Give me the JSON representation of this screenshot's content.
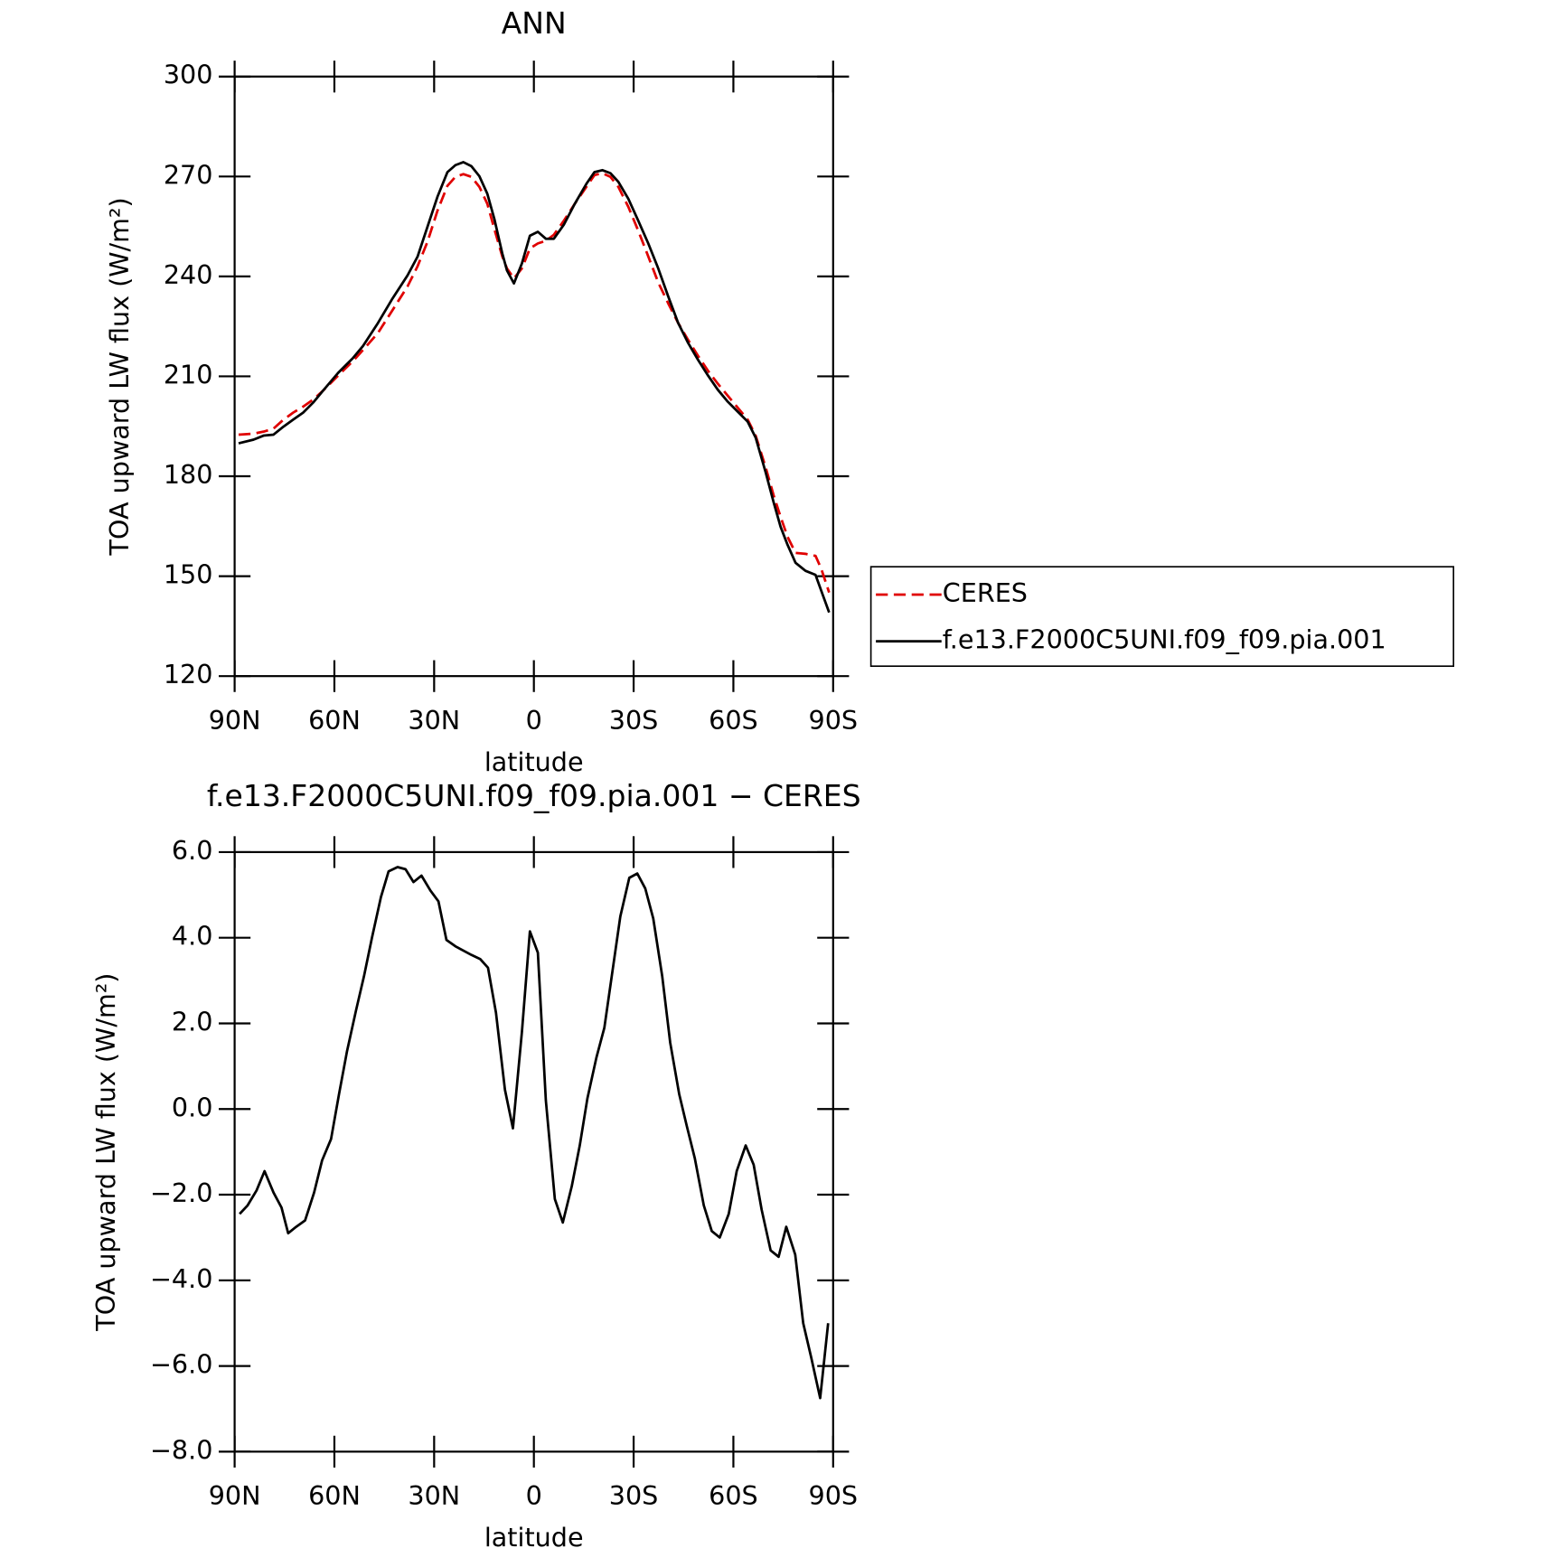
{
  "chart_data": [
    {
      "type": "line",
      "title": "ANN",
      "xlabel": "latitude",
      "ylabel": "TOA upward LW flux (W/m²)",
      "x": [
        88.8,
        84.3,
        81.3,
        78.3,
        75.3,
        72.4,
        69.4,
        66.4,
        63.4,
        58.9,
        54.4,
        51.4,
        46.9,
        42.5,
        38.0,
        35.0,
        32.0,
        29.0,
        26.0,
        23.6,
        21.2,
        18.8,
        16.4,
        14.0,
        11.9,
        9.5,
        8.1,
        6.0,
        3.6,
        1.2,
        -1.2,
        -3.6,
        -6.0,
        -9.0,
        -12.3,
        -15.8,
        -18.2,
        -20.6,
        -23.0,
        -25.4,
        -28.4,
        -31.4,
        -34.4,
        -37.4,
        -40.4,
        -43.4,
        -46.4,
        -49.4,
        -52.4,
        -55.3,
        -58.3,
        -61.3,
        -64.3,
        -66.7,
        -69.7,
        -72.1,
        -74.2,
        -76.3,
        -78.7,
        -81.7,
        -84.7,
        -86.4,
        -88.8
      ],
      "series": [
        {
          "name": "CERES",
          "color": "#e00000",
          "dashed": true,
          "values": [
            192.5,
            192.8,
            193.4,
            194.3,
            197.0,
            199.1,
            200.9,
            203.0,
            205.7,
            210.2,
            214.6,
            217.9,
            223.0,
            229.9,
            237.0,
            243.0,
            250.4,
            259.7,
            267.2,
            269.9,
            270.7,
            269.9,
            266.9,
            261.8,
            254.3,
            246.0,
            242.4,
            239.4,
            242.4,
            248.4,
            249.9,
            250.7,
            252.5,
            256.7,
            261.8,
            266.9,
            270.4,
            271.0,
            269.9,
            266.9,
            260.9,
            253.7,
            246.0,
            238.2,
            231.9,
            226.0,
            220.9,
            216.1,
            211.6,
            207.8,
            204.2,
            200.6,
            197.0,
            192.2,
            182.7,
            174.3,
            167.8,
            161.8,
            157.0,
            156.7,
            156.1,
            152.3,
            145.1
          ]
        },
        {
          "name": "f.e13.F2000C5UNI.f09_f09.pia.001",
          "color": "#000000",
          "dashed": false,
          "values": [
            189.9,
            191.0,
            192.2,
            192.5,
            194.9,
            197.0,
            199.1,
            202.1,
            205.7,
            211.0,
            215.5,
            219.1,
            226.0,
            233.4,
            240.3,
            245.9,
            254.9,
            263.9,
            271.3,
            273.4,
            274.3,
            273.1,
            270.1,
            264.8,
            257.3,
            246.9,
            241.8,
            237.9,
            243.9,
            252.2,
            253.4,
            251.3,
            251.3,
            255.5,
            261.8,
            267.8,
            271.3,
            271.9,
            271.0,
            268.4,
            263.3,
            256.7,
            249.9,
            242.4,
            234.0,
            226.0,
            220.0,
            214.9,
            210.2,
            206.0,
            202.4,
            199.4,
            196.4,
            191.6,
            181.2,
            172.2,
            164.8,
            159.4,
            154.0,
            151.6,
            150.4,
            145.7,
            139.1
          ]
        }
      ],
      "xlim": [
        90,
        -90
      ],
      "xticks": [
        {
          "value": 90,
          "label": "90N"
        },
        {
          "value": 60,
          "label": "60N"
        },
        {
          "value": 30,
          "label": "30N"
        },
        0,
        {
          "value": -30,
          "label": "30S"
        },
        {
          "value": -60,
          "label": "60S"
        },
        {
          "value": -90,
          "label": "90S"
        }
      ],
      "ylim": [
        120,
        300
      ],
      "yticks": [
        120,
        150,
        180,
        210,
        240,
        270,
        300
      ],
      "legend": "right"
    },
    {
      "type": "line",
      "title": "f.e13.F2000C5UNI.f09_f09.pia.001 − CERES",
      "xlabel": "latitude",
      "ylabel": "TOA upward LW flux (W/m²)",
      "x": [
        88.5,
        86.1,
        83.4,
        81.0,
        78.3,
        75.9,
        73.9,
        71.5,
        68.8,
        66.1,
        63.7,
        61.0,
        58.6,
        56.2,
        53.5,
        51.1,
        48.7,
        46.0,
        43.7,
        41.0,
        38.6,
        36.2,
        33.8,
        31.1,
        28.7,
        26.3,
        23.6,
        21.2,
        18.8,
        16.1,
        13.8,
        11.4,
        8.7,
        6.3,
        3.6,
        1.2,
        -1.2,
        -3.6,
        -6.3,
        -8.7,
        -11.4,
        -13.8,
        -16.1,
        -18.8,
        -21.2,
        -23.6,
        -26.0,
        -28.7,
        -31.1,
        -33.5,
        -35.9,
        -38.6,
        -41.0,
        -43.7,
        -46.0,
        -48.4,
        -51.1,
        -53.5,
        -55.9,
        -58.6,
        -61.0,
        -63.7,
        -66.1,
        -68.5,
        -71.2,
        -73.6,
        -75.9,
        -78.6,
        -81.0,
        -83.4,
        -86.1,
        -88.5
      ],
      "series": [
        {
          "color": "#000000",
          "values": [
            -2.45,
            -2.25,
            -1.9,
            -1.45,
            -1.95,
            -2.3,
            -2.9,
            -2.75,
            -2.6,
            -1.95,
            -1.2,
            -0.7,
            0.35,
            1.35,
            2.3,
            3.1,
            4.0,
            4.95,
            5.55,
            5.65,
            5.6,
            5.3,
            5.45,
            5.1,
            4.85,
            3.95,
            3.8,
            3.7,
            3.6,
            3.5,
            3.3,
            2.25,
            0.45,
            -0.45,
            1.8,
            4.15,
            3.65,
            0.2,
            -2.1,
            -2.65,
            -1.8,
            -0.85,
            0.25,
            1.2,
            1.9,
            3.2,
            4.5,
            5.4,
            5.5,
            5.15,
            4.45,
            3.1,
            1.55,
            0.35,
            -0.4,
            -1.15,
            -2.25,
            -2.85,
            -3.0,
            -2.45,
            -1.45,
            -0.85,
            -1.3,
            -2.35,
            -3.3,
            -3.45,
            -2.75,
            -3.4,
            -5.0,
            -5.8,
            -6.75,
            -5.0
          ]
        }
      ],
      "xlim": [
        90,
        -90
      ],
      "xticks": [
        {
          "value": 90,
          "label": "90N"
        },
        {
          "value": 60,
          "label": "60N"
        },
        {
          "value": 30,
          "label": "30N"
        },
        0,
        {
          "value": -30,
          "label": "30S"
        },
        {
          "value": -60,
          "label": "60S"
        },
        {
          "value": -90,
          "label": "90S"
        }
      ],
      "ylim": [
        -8,
        6
      ],
      "yticks": [
        {
          "value": -8,
          "label": "−8.0"
        },
        {
          "value": -6,
          "label": "−6.0"
        },
        {
          "value": -4,
          "label": "−4.0"
        },
        {
          "value": -2,
          "label": "−2.0"
        },
        {
          "value": 0,
          "label": "0.0"
        },
        {
          "value": 2,
          "label": "2.0"
        },
        {
          "value": 4,
          "label": "4.0"
        },
        {
          "value": 6,
          "label": "6.0"
        }
      ]
    }
  ]
}
